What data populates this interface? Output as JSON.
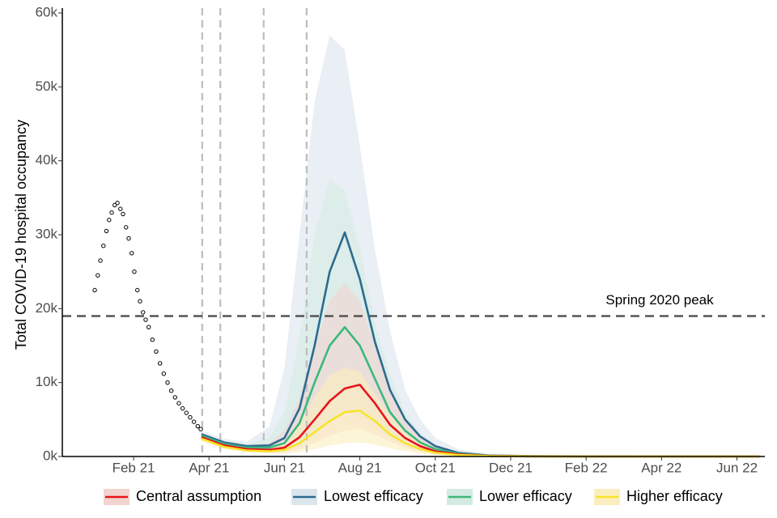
{
  "chart_data": {
    "type": "line",
    "y_label": "Total COVID-19 hospital occupancy",
    "xlim": [
      0.11,
      18.74
    ],
    "xticks": [
      {
        "value": 2,
        "label": "Feb 21"
      },
      {
        "value": 4,
        "label": "Apr 21"
      },
      {
        "value": 6,
        "label": "Jun 21"
      },
      {
        "value": 8,
        "label": "Aug 21"
      },
      {
        "value": 10,
        "label": "Oct 21"
      },
      {
        "value": 12,
        "label": "Dec 21"
      },
      {
        "value": 14,
        "label": "Feb 22"
      },
      {
        "value": 16,
        "label": "Apr 22"
      },
      {
        "value": 18,
        "label": "Jun 22"
      }
    ],
    "ylim": [
      0,
      60000
    ],
    "yticks": [
      {
        "value": 0,
        "label": "0k"
      },
      {
        "value": 10000,
        "label": "10k"
      },
      {
        "value": 20000,
        "label": "20k"
      },
      {
        "value": 30000,
        "label": "30k"
      },
      {
        "value": 40000,
        "label": "40k"
      },
      {
        "value": 50000,
        "label": "50k"
      },
      {
        "value": 60000,
        "label": "60k"
      }
    ],
    "vlines": [
      3.82,
      4.3,
      5.45,
      6.59
    ],
    "hline": {
      "value": 19000,
      "label": "Spring 2020 peak"
    },
    "points": {
      "x": [
        0.97,
        1.05,
        1.12,
        1.2,
        1.28,
        1.35,
        1.42,
        1.5,
        1.57,
        1.65,
        1.72,
        1.8,
        1.87,
        1.95,
        2.02,
        2.1,
        2.17,
        2.25,
        2.32,
        2.4,
        2.5,
        2.6,
        2.7,
        2.8,
        2.9,
        3.0,
        3.1,
        3.2,
        3.3,
        3.4,
        3.5,
        3.6,
        3.7,
        3.78
      ],
      "y": [
        22500,
        24500,
        26500,
        28500,
        30500,
        32000,
        33000,
        34000,
        34300,
        33500,
        32800,
        31000,
        29500,
        27500,
        25000,
        22500,
        21000,
        19500,
        18500,
        17500,
        15800,
        14200,
        12600,
        11200,
        10000,
        8900,
        8000,
        7200,
        6500,
        5900,
        5300,
        4700,
        4100,
        3700
      ]
    },
    "x": [
      3.8,
      4.4,
      5.0,
      5.6,
      6.0,
      6.4,
      6.8,
      7.2,
      7.6,
      8.0,
      8.4,
      8.8,
      9.2,
      9.6,
      10.0,
      10.6,
      11.4,
      12.5,
      14,
      18.6
    ],
    "series": [
      {
        "name": "Lowest efficacy",
        "color": "#2e6a91",
        "band_color": "#dbe5ec",
        "values": [
          3000,
          1900,
          1400,
          1500,
          2500,
          6500,
          15000,
          25000,
          30300,
          24000,
          15500,
          9000,
          5000,
          2700,
          1400,
          500,
          150,
          50,
          20,
          0
        ],
        "upper": [
          3500,
          2400,
          2000,
          4000,
          12000,
          30000,
          48000,
          57000,
          55000,
          42000,
          28000,
          17000,
          9000,
          5000,
          2500,
          1000,
          300,
          100,
          50,
          0
        ],
        "lower": [
          2500,
          1500,
          1000,
          800,
          1000,
          2000,
          4000,
          7000,
          9000,
          8000,
          6000,
          3500,
          2000,
          1000,
          500,
          200,
          50,
          0,
          0,
          0
        ]
      },
      {
        "name": "Lower efficacy",
        "color": "#3bb87a",
        "band_color": "#d3ebe2",
        "values": [
          2800,
          1700,
          1200,
          1200,
          1800,
          4500,
          10000,
          15000,
          17500,
          15000,
          10500,
          6000,
          3500,
          1900,
          1000,
          400,
          100,
          30,
          10,
          0
        ],
        "upper": [
          3200,
          2100,
          1600,
          2500,
          6000,
          16000,
          30000,
          37500,
          36000,
          28000,
          18000,
          11000,
          6000,
          3200,
          1600,
          600,
          200,
          50,
          20,
          0
        ],
        "lower": [
          2400,
          1300,
          900,
          600,
          800,
          1500,
          3000,
          5000,
          6000,
          5500,
          4000,
          2500,
          1400,
          700,
          400,
          150,
          30,
          0,
          0,
          0
        ]
      },
      {
        "name": "Central assumption",
        "color": "#e8141c",
        "band_color": "#f1d3cf",
        "values": [
          2600,
          1500,
          1000,
          900,
          1200,
          2600,
          5000,
          7500,
          9200,
          9700,
          7200,
          4300,
          2500,
          1400,
          700,
          300,
          80,
          20,
          0,
          0
        ],
        "upper": [
          3000,
          1900,
          1400,
          1800,
          3500,
          8000,
          15000,
          21000,
          23500,
          21000,
          15000,
          9000,
          5000,
          2800,
          1400,
          500,
          150,
          30,
          10,
          0
        ],
        "lower": [
          2200,
          1200,
          700,
          500,
          500,
          1000,
          1800,
          2800,
          3500,
          3800,
          3000,
          2000,
          1200,
          700,
          400,
          150,
          30,
          0,
          0,
          0
        ]
      },
      {
        "name": "Higher efficacy",
        "color": "#f7e42a",
        "band_color": "#fbeebe",
        "values": [
          2400,
          1300,
          800,
          700,
          900,
          1800,
          3300,
          4800,
          6000,
          6200,
          4800,
          3000,
          1800,
          1000,
          500,
          200,
          60,
          10,
          0,
          0
        ],
        "upper": [
          2800,
          1700,
          1100,
          1200,
          2000,
          4500,
          8000,
          11000,
          12000,
          11500,
          8500,
          5500,
          3200,
          1800,
          900,
          350,
          100,
          20,
          0,
          0
        ],
        "lower": [
          2000,
          1000,
          600,
          400,
          400,
          600,
          1000,
          1500,
          1800,
          1900,
          1600,
          1100,
          700,
          400,
          200,
          80,
          20,
          0,
          0,
          0
        ]
      }
    ],
    "legend_order": [
      2,
      0,
      1,
      3
    ]
  }
}
